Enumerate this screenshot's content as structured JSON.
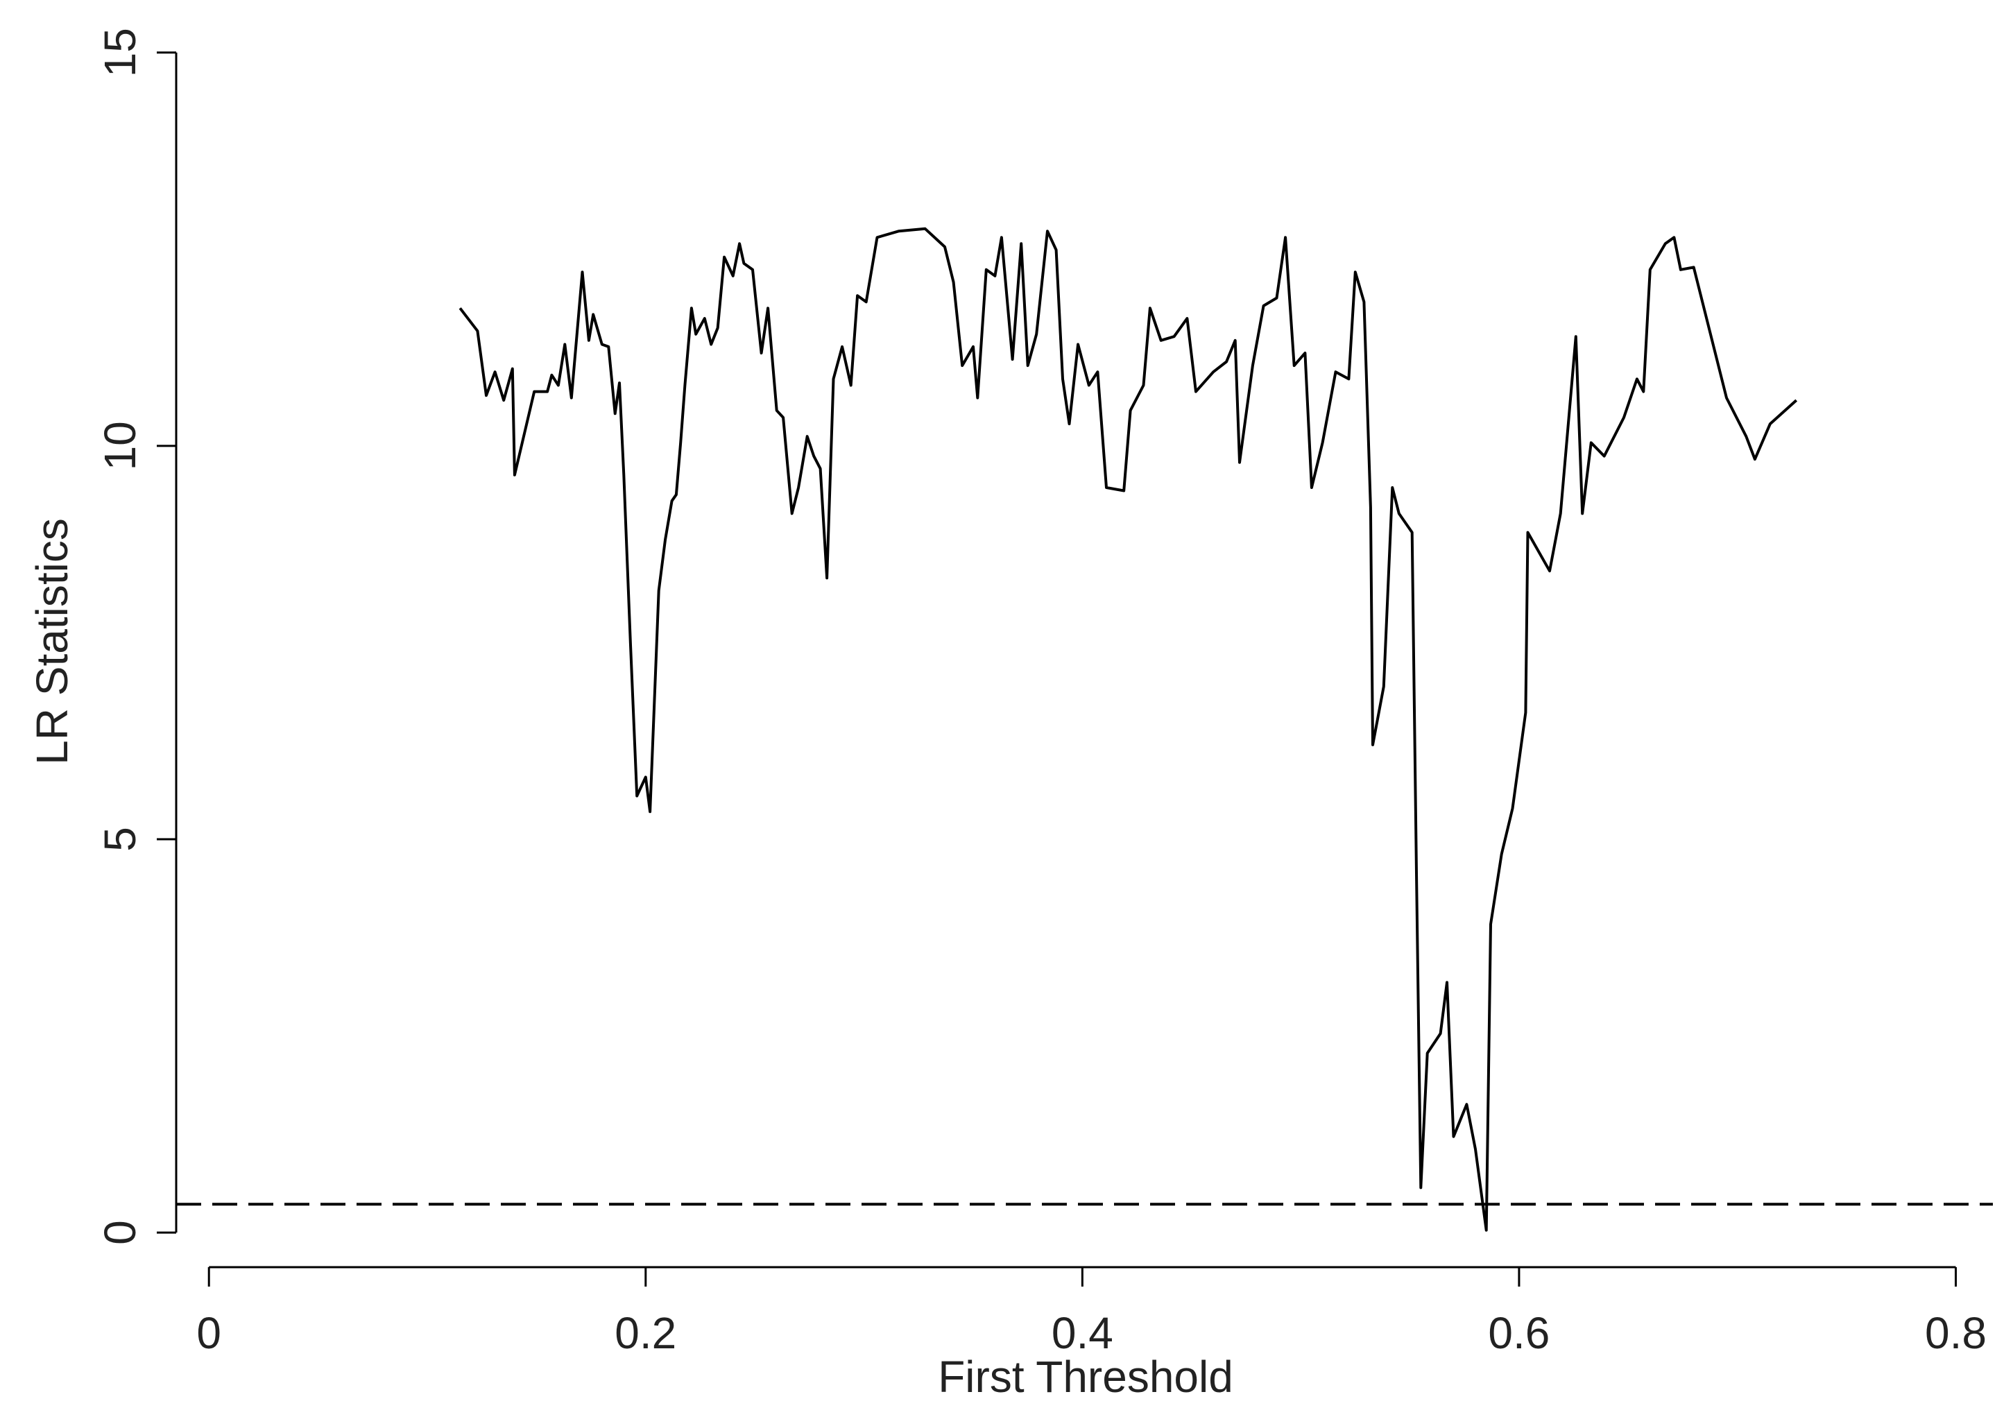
{
  "chart_data": {
    "type": "line",
    "x_label": "First Threshold",
    "y_label": "LR Statistics",
    "color": "#000000",
    "xlim": [
      -0.015,
      0.817
    ],
    "ylim": [
      -0.44,
      15.5
    ],
    "xticks": [
      0,
      0.2,
      0.4,
      0.6,
      0.8
    ],
    "yticks": [
      0,
      5,
      10,
      15
    ],
    "reference_line": 0.36,
    "x": [
      0.115,
      0.123,
      0.127,
      0.131,
      0.135,
      0.139,
      0.14,
      0.149,
      0.155,
      0.157,
      0.16,
      0.163,
      0.166,
      0.171,
      0.174,
      0.176,
      0.18,
      0.183,
      0.186,
      0.188,
      0.19,
      0.193,
      0.196,
      0.2,
      0.202,
      0.206,
      0.209,
      0.212,
      0.214,
      0.216,
      0.218,
      0.221,
      0.223,
      0.227,
      0.23,
      0.233,
      0.236,
      0.24,
      0.243,
      0.245,
      0.249,
      0.253,
      0.256,
      0.26,
      0.263,
      0.267,
      0.27,
      0.274,
      0.277,
      0.28,
      0.283,
      0.286,
      0.29,
      0.294,
      0.297,
      0.301,
      0.306,
      0.316,
      0.328,
      0.337,
      0.341,
      0.345,
      0.35,
      0.352,
      0.356,
      0.36,
      0.363,
      0.368,
      0.372,
      0.375,
      0.379,
      0.384,
      0.388,
      0.391,
      0.394,
      0.398,
      0.403,
      0.407,
      0.411,
      0.419,
      0.422,
      0.428,
      0.431,
      0.436,
      0.442,
      0.448,
      0.452,
      0.46,
      0.466,
      0.47,
      0.472,
      0.478,
      0.483,
      0.489,
      0.493,
      0.497,
      0.502,
      0.505,
      0.51,
      0.516,
      0.522,
      0.525,
      0.529,
      0.532,
      0.533,
      0.538,
      0.542,
      0.545,
      0.551,
      0.553,
      0.555,
      0.558,
      0.564,
      0.567,
      0.57,
      0.576,
      0.58,
      0.585,
      0.587,
      0.592,
      0.597,
      0.603,
      0.604,
      0.614,
      0.619,
      0.626,
      0.629,
      0.633,
      0.639,
      0.648,
      0.654,
      0.657,
      0.66,
      0.667,
      0.671,
      0.674,
      0.68,
      0.695,
      0.704,
      0.708,
      0.715,
      0.727
    ],
    "values": [
      11.75,
      11.46,
      10.64,
      10.94,
      10.58,
      10.98,
      9.63,
      10.69,
      10.69,
      10.9,
      10.77,
      11.29,
      10.61,
      12.21,
      11.34,
      11.67,
      11.29,
      11.26,
      10.41,
      10.8,
      9.63,
      7.51,
      5.55,
      5.79,
      5.35,
      8.16,
      8.81,
      9.3,
      9.38,
      10.04,
      10.77,
      11.75,
      11.42,
      11.62,
      11.29,
      11.5,
      12.4,
      12.16,
      12.57,
      12.32,
      12.24,
      11.18,
      11.75,
      10.45,
      10.36,
      9.14,
      9.47,
      10.12,
      9.87,
      9.71,
      8.32,
      10.85,
      11.26,
      10.77,
      11.91,
      11.83,
      12.65,
      12.73,
      12.76,
      12.53,
      12.08,
      11.02,
      11.26,
      10.61,
      12.24,
      12.16,
      12.65,
      11.1,
      12.57,
      11.02,
      11.42,
      12.73,
      12.49,
      10.85,
      10.28,
      11.29,
      10.77,
      10.94,
      9.47,
      9.43,
      10.45,
      10.77,
      11.75,
      11.34,
      11.39,
      11.62,
      10.69,
      10.94,
      11.07,
      11.34,
      9.79,
      11.02,
      11.78,
      11.88,
      12.65,
      11.02,
      11.18,
      9.47,
      10.04,
      10.94,
      10.85,
      12.21,
      11.83,
      9.22,
      6.2,
      6.94,
      9.47,
      9.14,
      8.9,
      4.57,
      0.57,
      2.28,
      2.53,
      3.18,
      1.22,
      1.63,
      1.06,
      0.03,
      3.92,
      4.81,
      5.39,
      6.61,
      8.9,
      8.41,
      9.14,
      11.39,
      9.14,
      10.04,
      9.87,
      10.36,
      10.85,
      10.69,
      12.24,
      12.57,
      12.65,
      12.24,
      12.27,
      10.61,
      10.12,
      9.83,
      10.28,
      10.58
    ]
  }
}
